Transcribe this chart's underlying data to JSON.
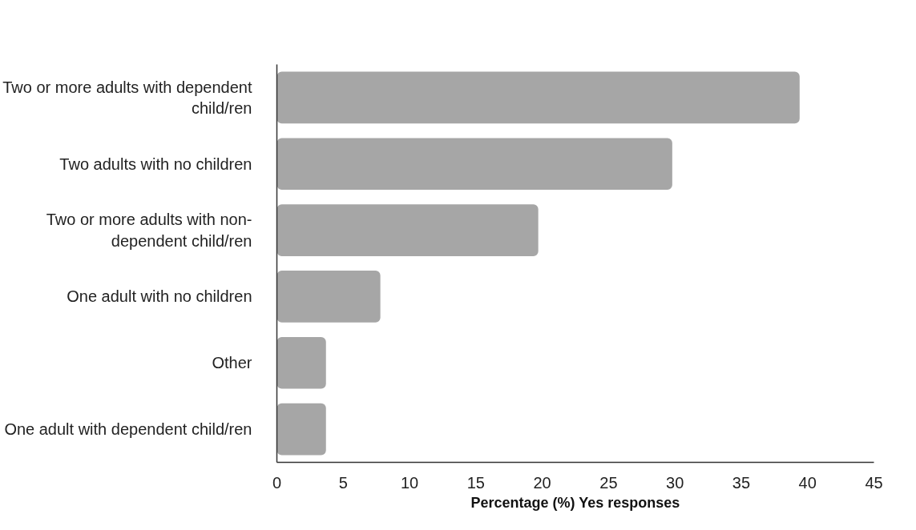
{
  "chart_data": {
    "type": "bar",
    "orientation": "horizontal",
    "xlabel": "Percentage (%) Yes responses",
    "categories": [
      "Two or more adults with dependent child/ren",
      "Two adults with no children",
      "Two or more adults with non-dependent child/ren",
      "One adult with no children",
      "Other",
      "One adult with dependent child/ren"
    ],
    "values": [
      39.4,
      29.8,
      19.7,
      7.8,
      3.7,
      3.7
    ],
    "color": "#a6a6a6",
    "xlim": [
      0,
      45
    ],
    "xticks": [
      0,
      5,
      10,
      15,
      20,
      25,
      30,
      35,
      40,
      45
    ],
    "grid": false
  }
}
